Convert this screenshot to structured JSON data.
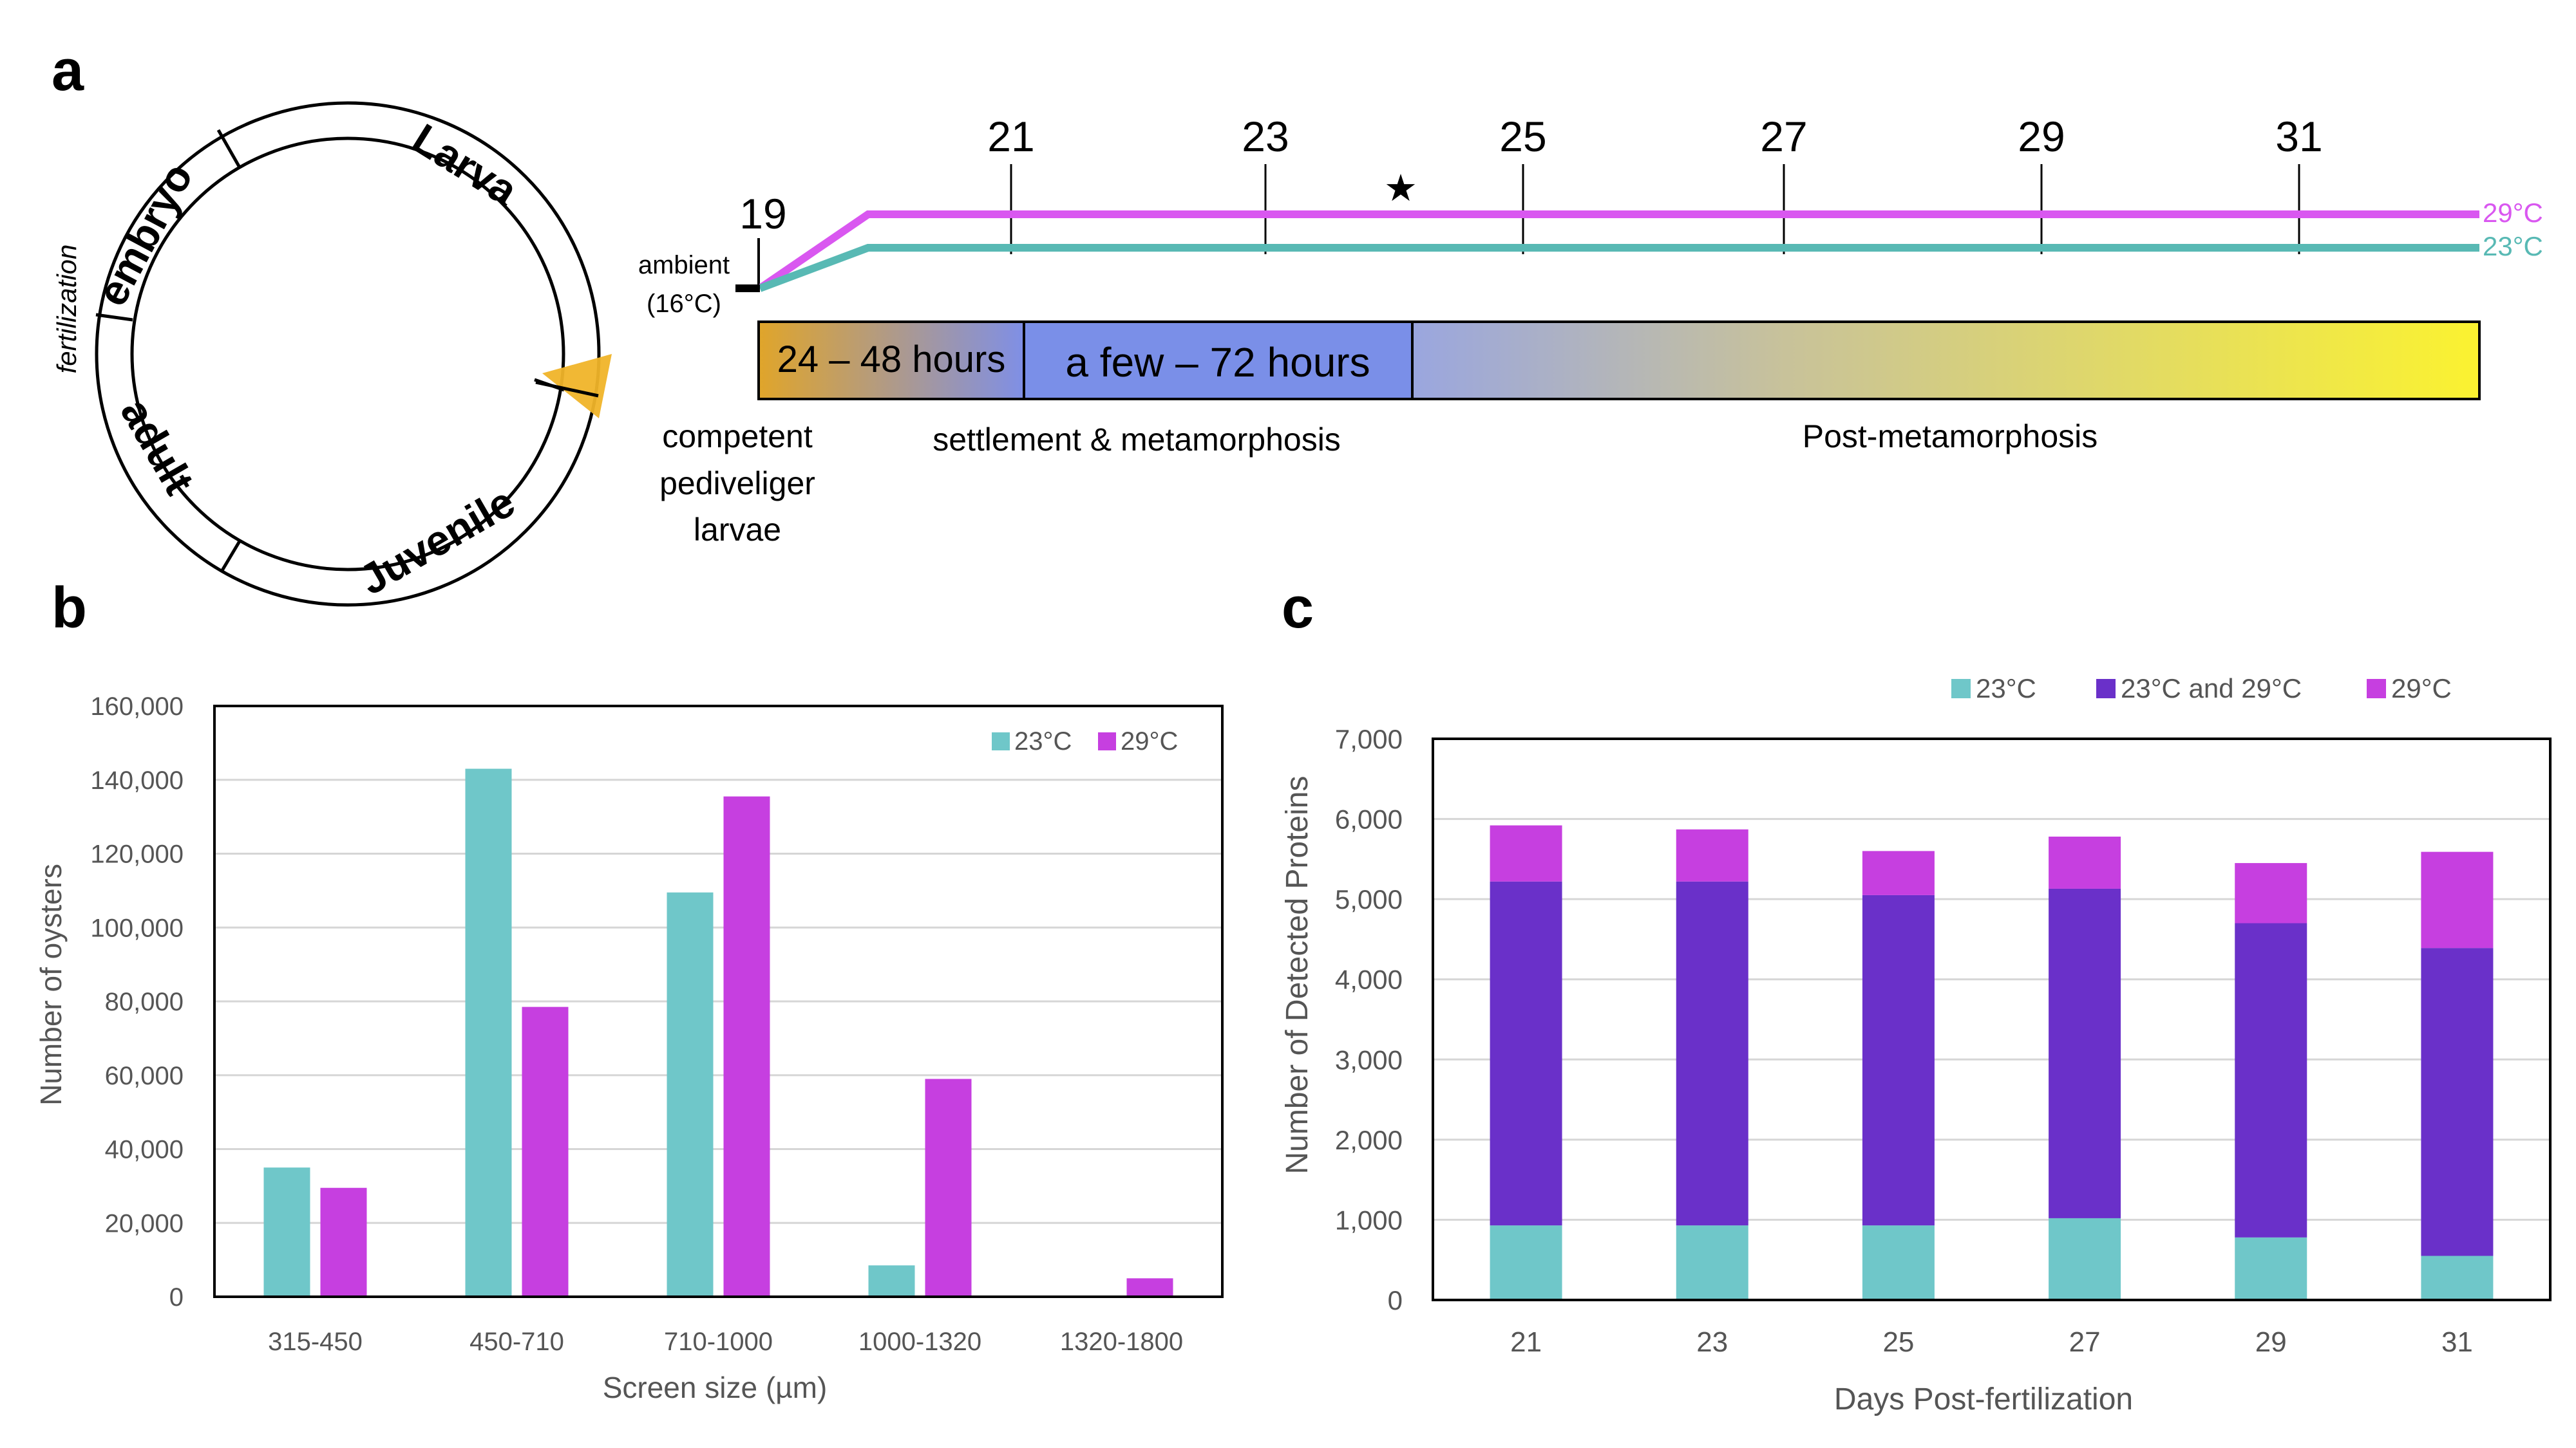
{
  "colors": {
    "c23": "#6fc7c9",
    "c29": "#c63fe0",
    "both": "#6a30c9",
    "timeline29": "#d957f0",
    "timeline23": "#58b9b4",
    "yellow_marker": "#f0b429"
  },
  "panel_labels": {
    "a": "a",
    "b": "b",
    "c": "c"
  },
  "lifecycle": {
    "stages": [
      "embryo",
      "Larva",
      "Juvenile",
      "adult"
    ],
    "fertilization_label": "fertilization"
  },
  "timeline": {
    "days": [
      "19",
      "21",
      "23",
      "25",
      "27",
      "29",
      "31"
    ],
    "ambient_label_line1": "ambient",
    "ambient_label_line2": "(16°C)",
    "line29_label": "29°C",
    "line23_label": "23°C",
    "star": "★",
    "phase1_label": "24 – 48 hours",
    "phase2_label": "a few – 72 hours",
    "caption_competent_1": "competent",
    "caption_competent_2": "pediveliger",
    "caption_competent_3": "larvae",
    "caption_settlement": "settlement & metamorphosis",
    "caption_post": "Post-metamorphosis"
  },
  "chart_data": [
    {
      "type": "bar",
      "title": "",
      "xlabel": "Screen size (µm)",
      "ylabel": "Number of oysters",
      "categories": [
        "315-450",
        "450-710",
        "710-1000",
        "1000-1320",
        "1320-1800"
      ],
      "series": [
        {
          "name": "23°C",
          "values": [
            35000,
            143000,
            109500,
            8500,
            0
          ]
        },
        {
          "name": "29°C",
          "values": [
            29500,
            78500,
            135500,
            59000,
            5000
          ]
        }
      ],
      "ylim": [
        0,
        160000
      ],
      "yticks": [
        "0",
        "20,000",
        "40,000",
        "60,000",
        "80,000",
        "100,000",
        "120,000",
        "140,000",
        "160,000"
      ],
      "grid": true,
      "legend": "top-right"
    },
    {
      "type": "bar",
      "stacked": true,
      "title": "",
      "xlabel": "Days Post-fertilization",
      "ylabel": "Number of Detected Proteins",
      "categories": [
        "21",
        "23",
        "25",
        "27",
        "29",
        "31"
      ],
      "series": [
        {
          "name": "23°C",
          "values": [
            930,
            930,
            930,
            1020,
            780,
            550
          ]
        },
        {
          "name": "23°C and 29°C",
          "values": [
            4290,
            4290,
            4120,
            4110,
            3920,
            3840
          ]
        },
        {
          "name": "29°C",
          "values": [
            700,
            650,
            550,
            650,
            750,
            1200
          ]
        }
      ],
      "ylim": [
        0,
        7000
      ],
      "yticks": [
        "0",
        "1,000",
        "2,000",
        "3,000",
        "4,000",
        "5,000",
        "6,000",
        "7,000"
      ],
      "grid": true,
      "legend": "top"
    }
  ]
}
